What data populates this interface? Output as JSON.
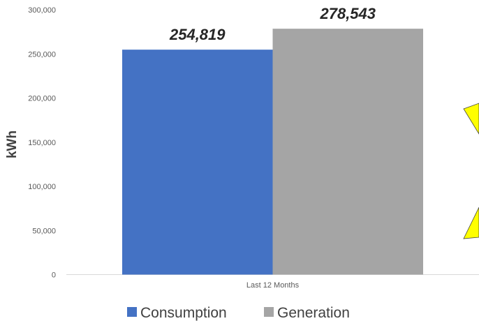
{
  "chart_data": {
    "type": "bar",
    "categories": [
      "Last 12 Months"
    ],
    "series": [
      {
        "name": "Consumption",
        "values": [
          254819
        ],
        "value_label": "254,819",
        "color": "#4472C4"
      },
      {
        "name": "Generation",
        "values": [
          278543
        ],
        "value_label": "278,543",
        "color": "#A5A5A5"
      }
    ],
    "ylabel": "kWh",
    "xlabel": "",
    "ylim": [
      0,
      300000
    ],
    "yticks": [
      {
        "value": 0,
        "label": "0"
      },
      {
        "value": 50000,
        "label": "50,000"
      },
      {
        "value": 100000,
        "label": "100,000"
      },
      {
        "value": 150000,
        "label": "150,000"
      },
      {
        "value": 200000,
        "label": "200,000"
      },
      {
        "value": 250000,
        "label": "250,000"
      },
      {
        "value": 300000,
        "label": "300,000"
      }
    ],
    "grid": false,
    "legend": "bottom",
    "decoration": {
      "name": "partial-yellow-shapes-right-edge",
      "color": "#FFFF00",
      "stroke": "#404040"
    }
  }
}
